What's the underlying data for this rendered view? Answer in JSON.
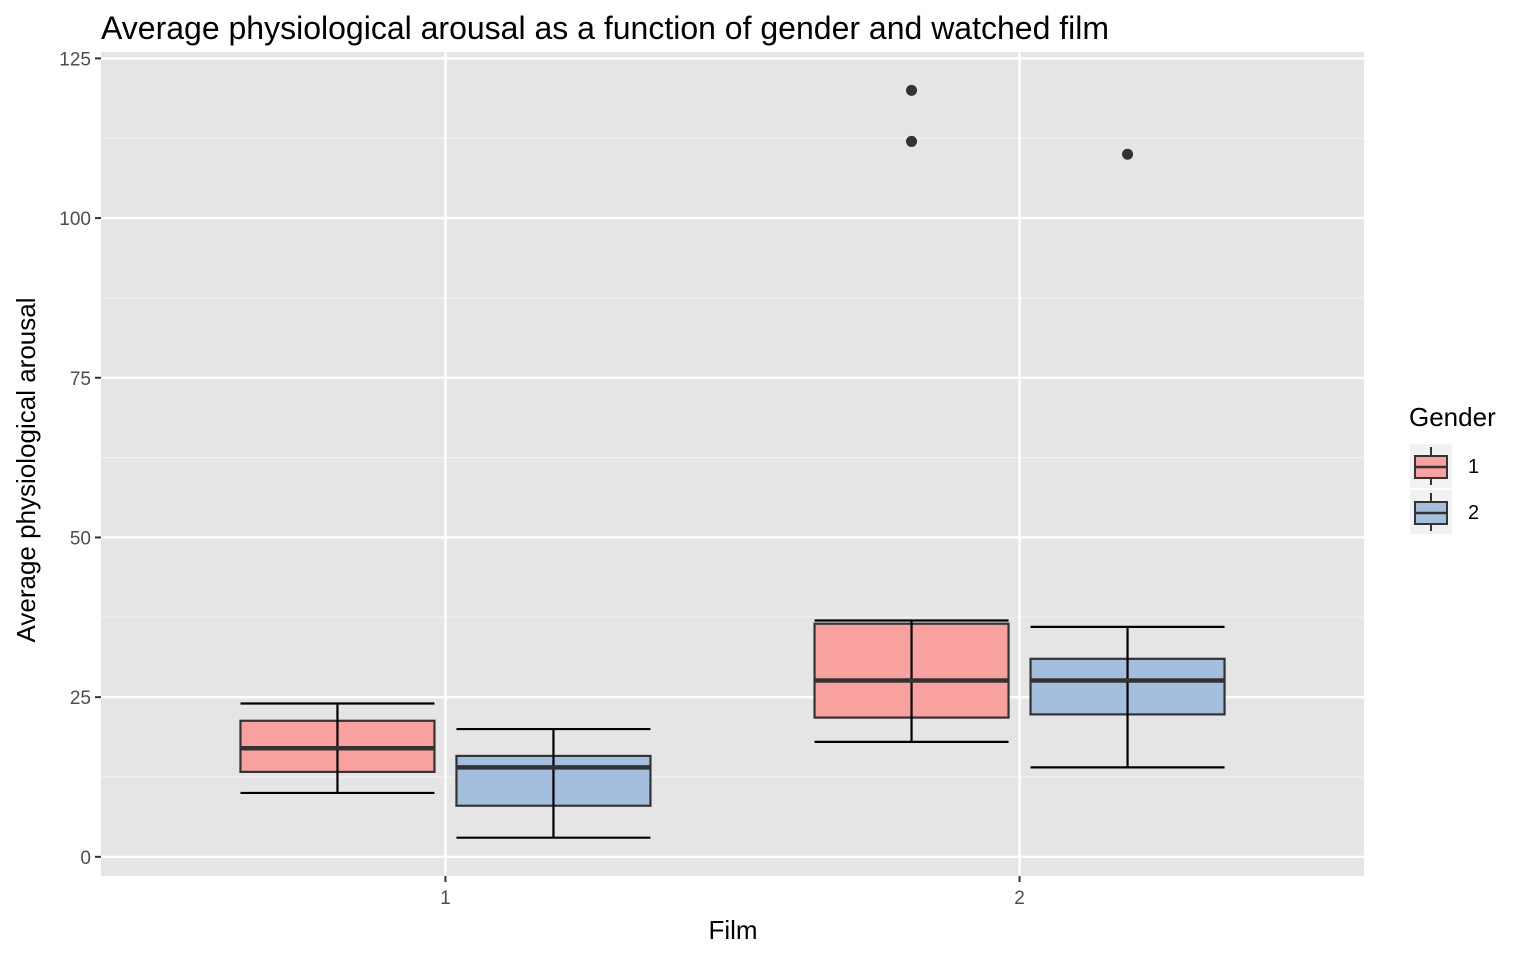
{
  "chart_data": {
    "type": "boxplot",
    "title": "Average physiological arousal as a function of gender and watched film",
    "xlabel": "Film",
    "ylabel": "Average physiological arousal",
    "categories": [
      "1",
      "2"
    ],
    "ylim": [
      -3,
      126
    ],
    "yticks": [
      0,
      25,
      50,
      75,
      100,
      125
    ],
    "y_tick_labels": [
      "0",
      "25",
      "50",
      "75",
      "100",
      "125"
    ],
    "grid": true,
    "legend": {
      "title": "Gender",
      "position": "right"
    },
    "series": [
      {
        "name": "1",
        "color": "#f8a19f",
        "boxes": [
          {
            "category": "1",
            "whisker_low": 10,
            "q1": 13.3,
            "median": 17,
            "q3": 21.3,
            "whisker_high": 24,
            "outliers": []
          },
          {
            "category": "2",
            "whisker_low": 18,
            "q1": 21.8,
            "median": 27.6,
            "q3": 36.5,
            "whisker_high": 37,
            "outliers": [
              120,
              112
            ]
          }
        ]
      },
      {
        "name": "2",
        "color": "#a4bfdd",
        "boxes": [
          {
            "category": "1",
            "whisker_low": 3,
            "q1": 8,
            "median": 14,
            "q3": 15.8,
            "whisker_high": 20,
            "outliers": []
          },
          {
            "category": "2",
            "whisker_low": 14,
            "q1": 22.3,
            "median": 27.6,
            "q3": 31,
            "whisker_high": 36,
            "outliers": [
              110
            ]
          }
        ]
      }
    ],
    "colors": {
      "panel_background": "#e5e5e5",
      "grid_major": "#ffffff",
      "grid_minor": "#f2f2f2",
      "outline": "#333333",
      "whisker": "#000000",
      "tick_mark": "#333333"
    }
  }
}
